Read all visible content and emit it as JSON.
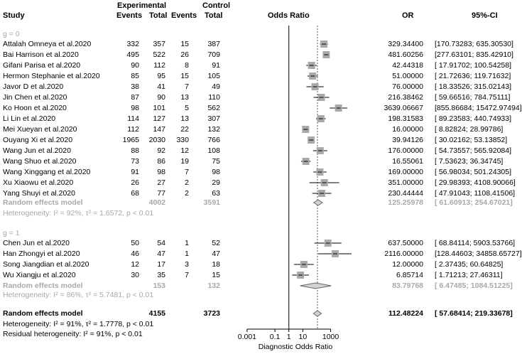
{
  "chart_data": {
    "type": "forest",
    "headers": {
      "study": "Study",
      "experimental": "Experimental",
      "control": "Control",
      "events": "Events",
      "total": "Total",
      "odds_ratio": "Odds Ratio",
      "or": "OR",
      "ci": "95%-CI"
    },
    "subgroups": [
      {
        "label": "g = 0",
        "studies": [
          {
            "study": "Attalah Omneya et al.2020",
            "e_events": "332",
            "e_total": "357",
            "c_events": "15",
            "c_total": "387",
            "or": "329.34400",
            "ci": "[170.73283; 635.30530]",
            "or_value": 329.344,
            "lo": 170.73283,
            "hi": 635.3053
          },
          {
            "study": "Bai Harrison et al.2020",
            "e_events": "495",
            "e_total": "522",
            "c_events": "26",
            "c_total": "709",
            "or": "481.60256",
            "ci": "[277.63101; 835.42910]",
            "or_value": 481.60256,
            "lo": 277.63101,
            "hi": 835.4291
          },
          {
            "study": "Gifani Parisa et al.2020",
            "e_events": "90",
            "e_total": "112",
            "c_events": "8",
            "c_total": "91",
            "or": "42.44318",
            "ci": "[ 17.91702; 100.54258]",
            "or_value": 42.44318,
            "lo": 17.91702,
            "hi": 100.54258
          },
          {
            "study": "Hermon Stephanie et al.2020",
            "e_events": "85",
            "e_total": "95",
            "c_events": "15",
            "c_total": "105",
            "or": "51.00000",
            "ci": "[ 21.72636; 119.71632]",
            "or_value": 51.0,
            "lo": 21.72636,
            "hi": 119.71632
          },
          {
            "study": "Javor D et al.2020",
            "e_events": "38",
            "e_total": "41",
            "c_events": "7",
            "c_total": "49",
            "or": "76.00000",
            "ci": "[ 18.33526; 315.02143]",
            "or_value": 76.0,
            "lo": 18.33526,
            "hi": 315.02143
          },
          {
            "study": "Jin Chen et al.2020",
            "e_events": "87",
            "e_total": "90",
            "c_events": "13",
            "c_total": "110",
            "or": "216.38462",
            "ci": "[ 59.66516; 784.75111]",
            "or_value": 216.38462,
            "lo": 59.66516,
            "hi": 784.75111
          },
          {
            "study": "Ko Hoon et al.2020",
            "e_events": "98",
            "e_total": "101",
            "c_events": "5",
            "c_total": "562",
            "or": "3639.06667",
            "ci": "[855.86684; 15472.97494]",
            "or_value": 3639.06667,
            "lo": 855.86684,
            "hi": 15472.97494
          },
          {
            "study": "Li Lin et al.2020",
            "e_events": "114",
            "e_total": "127",
            "c_events": "13",
            "c_total": "307",
            "or": "198.31583",
            "ci": "[ 89.23583; 440.74933]",
            "or_value": 198.31583,
            "lo": 89.23583,
            "hi": 440.74933
          },
          {
            "study": "Mei Xueyan et al.2020",
            "e_events": "112",
            "e_total": "147",
            "c_events": "22",
            "c_total": "132",
            "or": "16.00000",
            "ci": "[ 8.82824; 28.99786]",
            "or_value": 16.0,
            "lo": 8.82824,
            "hi": 28.99786
          },
          {
            "study": "Ouyang Xi et al.2020",
            "e_events": "1965",
            "e_total": "2030",
            "c_events": "330",
            "c_total": "766",
            "or": "39.94126",
            "ci": "[ 30.02162; 53.13852]",
            "or_value": 39.94126,
            "lo": 30.02162,
            "hi": 53.13852
          },
          {
            "study": "Wang Jun et al.2020",
            "e_events": "88",
            "e_total": "92",
            "c_events": "12",
            "c_total": "108",
            "or": "176.00000",
            "ci": "[ 54.73557; 565.92084]",
            "or_value": 176.0,
            "lo": 54.73557,
            "hi": 565.92084
          },
          {
            "study": "Wang Shuo et al.2020",
            "e_events": "73",
            "e_total": "86",
            "c_events": "19",
            "c_total": "75",
            "or": "16.55061",
            "ci": "[ 7.53623; 36.34745]",
            "or_value": 16.55061,
            "lo": 7.53623,
            "hi": 36.34745
          },
          {
            "study": "Wang Xinggang et al.2020",
            "e_events": "91",
            "e_total": "98",
            "c_events": "7",
            "c_total": "98",
            "or": "169.00000",
            "ci": "[ 56.98034; 501.24305]",
            "or_value": 169.0,
            "lo": 56.98034,
            "hi": 501.24305
          },
          {
            "study": "Xu Xiaowu et al.2020",
            "e_events": "26",
            "e_total": "27",
            "c_events": "2",
            "c_total": "29",
            "or": "351.00000",
            "ci": "[ 29.98393; 4108.90066]",
            "or_value": 351.0,
            "lo": 29.98393,
            "hi": 4108.90066
          },
          {
            "study": "Yang Shuyi et al.2020",
            "e_events": "68",
            "e_total": "77",
            "c_events": "2",
            "c_total": "63",
            "or": "230.44444",
            "ci": "[ 47.91043; 1108.41506]",
            "or_value": 230.44444,
            "lo": 47.91043,
            "hi": 1108.41506
          }
        ],
        "model": {
          "label": "Random effects model",
          "e_total": "4002",
          "c_total": "3591",
          "or": "125.25978",
          "ci": "[ 61.60913; 254.67021]",
          "or_value": 125.25978,
          "lo": 61.60913,
          "hi": 254.67021
        },
        "heterogeneity": "Heterogeneity: I² = 92%, τ² = 1.6572, p < 0.01"
      },
      {
        "label": "g = 1",
        "studies": [
          {
            "study": "Chen Jun et al.2020",
            "e_events": "50",
            "e_total": "54",
            "c_events": "1",
            "c_total": "52",
            "or": "637.50000",
            "ci": "[ 68.84114; 5903.53766]",
            "or_value": 637.5,
            "lo": 68.84114,
            "hi": 5903.53766
          },
          {
            "study": "Han Zhongyi et al.2020",
            "e_events": "46",
            "e_total": "47",
            "c_events": "1",
            "c_total": "47",
            "or": "2116.00000",
            "ci": "[128.44603; 34858.65727]",
            "or_value": 2116.0,
            "lo": 128.44603,
            "hi": 34858.65727
          },
          {
            "study": "Song Jiangdian et al.2020",
            "e_events": "12",
            "e_total": "17",
            "c_events": "3",
            "c_total": "18",
            "or": "12.00000",
            "ci": "[ 2.37435; 60.64825]",
            "or_value": 12.0,
            "lo": 2.37435,
            "hi": 60.64825
          },
          {
            "study": "Wu Xiangju et al.2020",
            "e_events": "30",
            "e_total": "35",
            "c_events": "7",
            "c_total": "15",
            "or": "6.85714",
            "ci": "[ 1.71213; 27.46311]",
            "or_value": 6.85714,
            "lo": 1.71213,
            "hi": 27.46311
          }
        ],
        "model": {
          "label": "Random effects model",
          "e_total": "153",
          "c_total": "132",
          "or": "83.79768",
          "ci": "[ 6.47485; 1084.51225]",
          "or_value": 83.79768,
          "lo": 6.47485,
          "hi": 1084.51225
        },
        "heterogeneity": "Heterogeneity: I² = 86%, τ² = 5.7481, p < 0.01"
      }
    ],
    "overall": {
      "label": "Random effects model",
      "e_total": "4155",
      "c_total": "3723",
      "or": "112.48224",
      "ci": "[ 57.68414; 219.33678]",
      "or_value": 112.48224,
      "lo": 57.68414,
      "hi": 219.33678,
      "heterogeneity": "Heterogeneity: I² = 91%, τ² = 1.7778, p < 0.01",
      "residual_heterogeneity": "Residual heterogeneity: I² = 91%, p < 0.01"
    },
    "x_axis": {
      "scale": "log",
      "label": "Diagnostic Odds Ratio",
      "ticks": [
        0.001,
        0.1,
        1,
        10,
        1000
      ],
      "tick_labels": [
        "0.001",
        "0.1",
        "1",
        "10",
        "1000"
      ]
    },
    "reference_line": 1,
    "colors": {
      "box": "#a9a9a9",
      "summary_fill": "#d3d3d3",
      "summary_stroke": "#666666",
      "text_grey": "#a8a8a8"
    }
  }
}
